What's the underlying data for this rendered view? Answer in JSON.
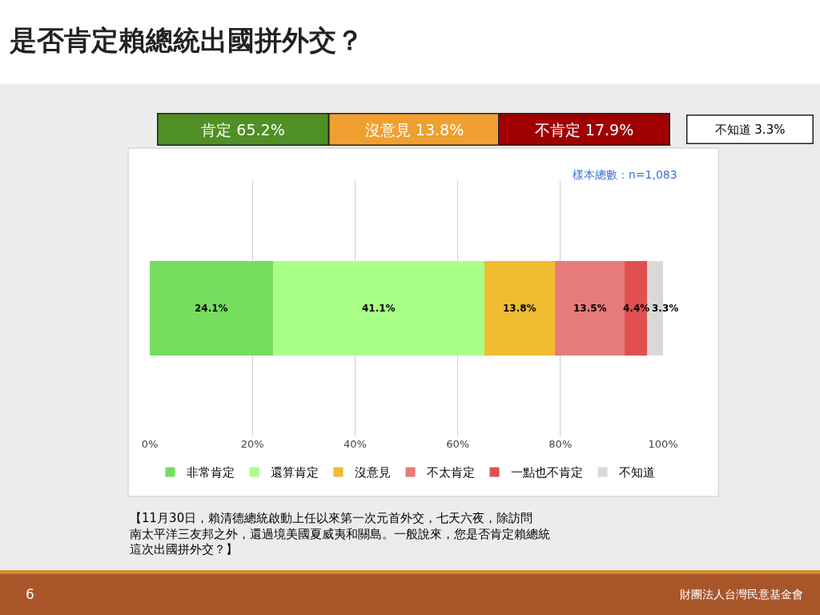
{
  "chart_data": {
    "type": "bar",
    "orientation": "horizontal",
    "stacked": true,
    "title": "是否肯定賴總統出國拼外交？",
    "categories": [
      null
    ],
    "series": [
      {
        "name": "非常肯定",
        "color": "#77dd5f",
        "values": [
          24.1
        ],
        "value_labels": [
          "24.1%"
        ]
      },
      {
        "name": "還算肯定",
        "color": "#aaff88",
        "values": [
          41.1
        ],
        "value_labels": [
          "41.1%"
        ]
      },
      {
        "name": "沒意見",
        "color": "#f0bc30",
        "values": [
          13.8
        ],
        "value_labels": [
          "13.8%"
        ]
      },
      {
        "name": "不太肯定",
        "color": "#e57b7b",
        "values": [
          13.5
        ],
        "value_labels": [
          "13.5%"
        ]
      },
      {
        "name": "一點也不肯定",
        "color": "#e05050",
        "values": [
          4.4
        ],
        "value_labels": [
          "4.4%"
        ]
      },
      {
        "name": "不知道",
        "color": "#d9d9d9",
        "values": [
          3.3
        ],
        "value_labels": [
          "3.3%"
        ]
      }
    ],
    "xlim": [
      0,
      100
    ],
    "xticks": [
      {
        "value": 0,
        "label": "0%"
      },
      {
        "value": 20,
        "label": "20%"
      },
      {
        "value": 40,
        "label": "40%"
      },
      {
        "value": 60,
        "label": "60%"
      },
      {
        "value": 80,
        "label": "80%"
      },
      {
        "value": 100,
        "label": "100%"
      }
    ],
    "grid": "x",
    "legend": "bottom",
    "annotations": [
      "肯定 65.2%",
      "沒意見 13.8%",
      "不肯定 17.9%",
      "不知道 3.3%",
      "樣本總數：n=1,083",
      "【11月30日，賴清德總統啟動上任以來第一次元首外交，七天六夜，除訪問南太平洋三友邦之外，還過境美國夏威夷和關島。一般說來，您是否肯定賴總統這次出國拼外交？】",
      "6",
      "財團法人台灣民意基金會"
    ]
  }
}
